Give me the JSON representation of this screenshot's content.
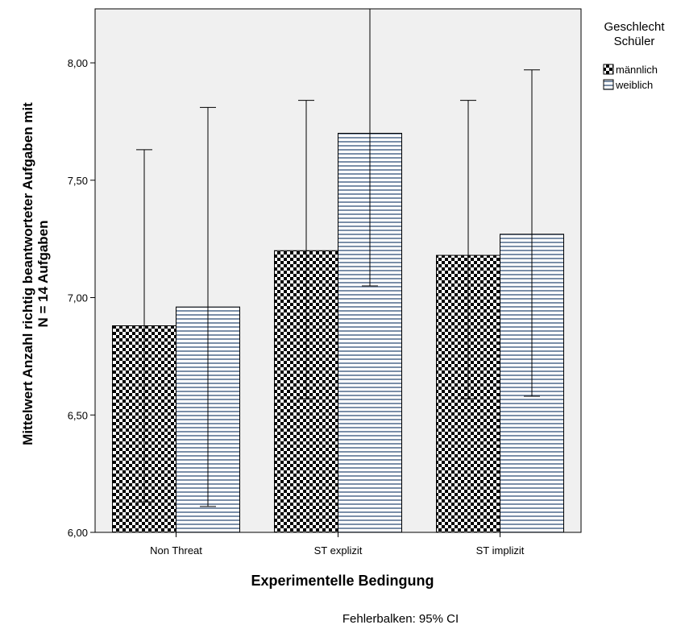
{
  "chart_data": {
    "type": "bar",
    "categories": [
      "Non Threat",
      "ST explizit",
      "ST implizit"
    ],
    "series": [
      {
        "name": "männlich",
        "pattern": "checker",
        "values": [
          6.88,
          7.2,
          7.18
        ],
        "ci_low": [
          6.13,
          6.57,
          6.57
        ],
        "ci_high": [
          7.63,
          7.84,
          7.84
        ]
      },
      {
        "name": "weiblich",
        "pattern": "horizontal-stripes",
        "values": [
          6.96,
          7.7,
          7.27
        ],
        "ci_low": [
          6.11,
          7.05,
          6.58
        ],
        "ci_high": [
          7.81,
          8.23,
          7.97
        ]
      }
    ],
    "ylim": [
      6.0,
      8.23
    ],
    "yticks": [
      "6,00",
      "6,50",
      "7,00",
      "7,50",
      "8,00"
    ],
    "ytick_values": [
      6.0,
      6.5,
      7.0,
      7.5,
      8.0
    ],
    "xlabel": "Experimentelle Bedingung",
    "ylabel_line1": "Mittelwert Anzahl richtig beantworteter Aufgaben mit",
    "ylabel_line2": "N = 14 Aufgaben",
    "legend_title_line1": "Geschlecht",
    "legend_title_line2": "Schüler",
    "legend_placement": "right",
    "footnote": "Fehlerbalken: 95% CI",
    "colors": {
      "plot_bg": "#f0f0f0",
      "bar_dark": "#000000",
      "bar_light": "#ffffff",
      "stripe": "#7a8ea8"
    }
  }
}
